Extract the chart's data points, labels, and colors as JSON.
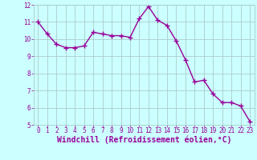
{
  "x": [
    0,
    1,
    2,
    3,
    4,
    5,
    6,
    7,
    8,
    9,
    10,
    11,
    12,
    13,
    14,
    15,
    16,
    17,
    18,
    19,
    20,
    21,
    22,
    23
  ],
  "y": [
    11.0,
    10.3,
    9.7,
    9.5,
    9.5,
    9.6,
    10.4,
    10.3,
    10.2,
    10.2,
    10.1,
    11.2,
    11.9,
    11.1,
    10.8,
    9.9,
    8.8,
    7.5,
    7.6,
    6.8,
    6.3,
    6.3,
    6.1,
    5.2
  ],
  "line_color": "#990099",
  "marker": "+",
  "markersize": 4,
  "linewidth": 1.0,
  "bg_color": "#ccffff",
  "grid_color": "#aacccc",
  "xlabel": "Windchill (Refroidissement éolien,°C)",
  "xlabel_color": "#990099",
  "ylim": [
    5,
    12
  ],
  "xlim_min": -0.5,
  "xlim_max": 23.5,
  "yticks": [
    5,
    6,
    7,
    8,
    9,
    10,
    11,
    12
  ],
  "xticks": [
    0,
    1,
    2,
    3,
    4,
    5,
    6,
    7,
    8,
    9,
    10,
    11,
    12,
    13,
    14,
    15,
    16,
    17,
    18,
    19,
    20,
    21,
    22,
    23
  ],
  "tick_color": "#990099",
  "tick_labelsize": 5.5,
  "xlabel_fontsize": 7.0,
  "markeredgewidth": 1.0
}
